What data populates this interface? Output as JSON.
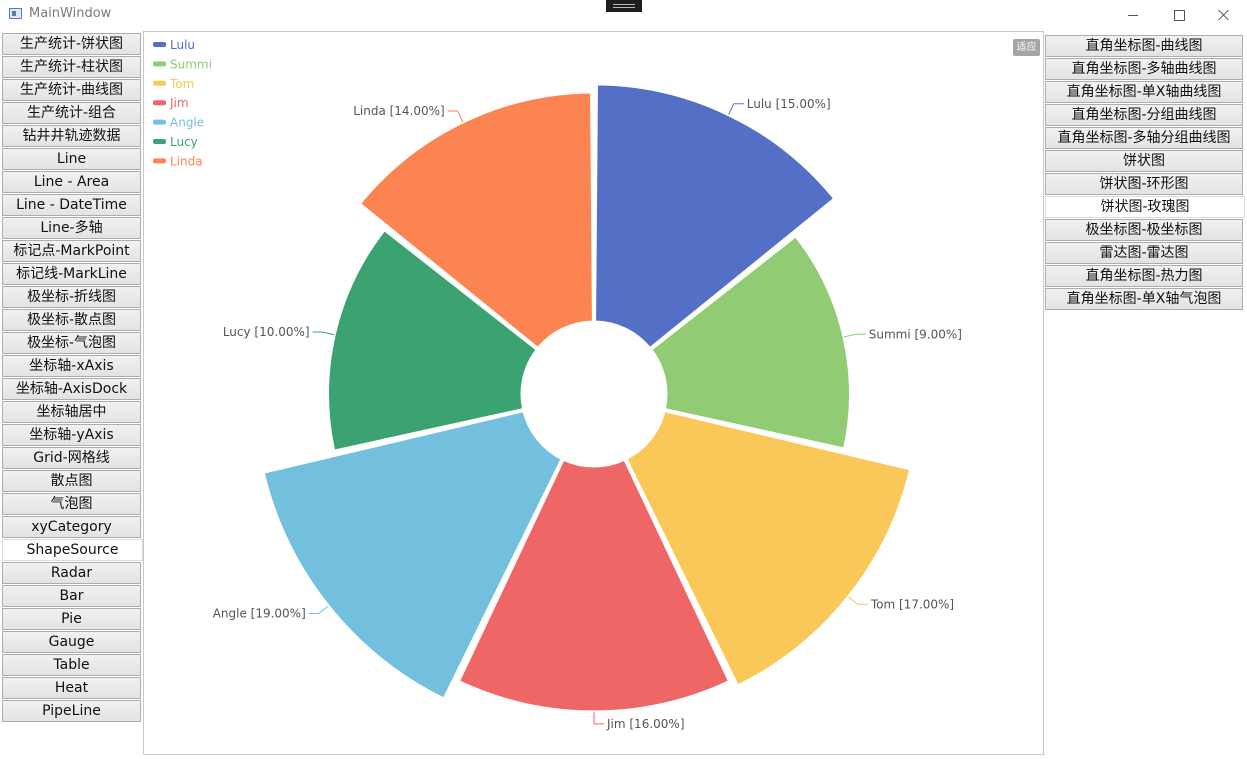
{
  "window": {
    "title": "MainWindow"
  },
  "left_nav": [
    "生产统计-饼状图",
    "生产统计-柱状图",
    "生产统计-曲线图",
    "生产统计-组合",
    "钻井井轨迹数据",
    "Line",
    "Line - Area",
    "Line - DateTime",
    "Line-多轴",
    "标记点-MarkPoint",
    "标记线-MarkLine",
    "极坐标-折线图",
    "极坐标-散点图",
    "极坐标-气泡图",
    "坐标轴-xAxis",
    "坐标轴-AxisDock",
    "坐标轴居中",
    "坐标轴-yAxis",
    "Grid-网格线",
    "散点图",
    "气泡图",
    "xyCategory",
    "ShapeSource",
    "Radar",
    "Bar",
    "Pie",
    "Gauge",
    "Table",
    "Heat",
    "PipeLine"
  ],
  "left_active": "ShapeSource",
  "right_nav": [
    "直角坐标图-曲线图",
    "直角坐标图-多轴曲线图",
    "直角坐标图-单X轴曲线图",
    "直角坐标图-分组曲线图",
    "直角坐标图-多轴分组曲线图",
    "饼状图",
    "饼状图-环形图",
    "饼状图-玫瑰图",
    "极坐标图-极坐标图",
    "雷达图-雷达图",
    "直角坐标图-热力图",
    "直角坐标图-单X轴气泡图"
  ],
  "right_active": "饼状图-玫瑰图",
  "fit_button": "适应",
  "chart_data": {
    "type": "pie",
    "variant": "rose (nightingale) with inner radius",
    "legend_position": "top-left",
    "categories": [
      "Lulu",
      "Summi",
      "Tom",
      "Jim",
      "Angle",
      "Lucy",
      "Linda"
    ],
    "values": [
      15,
      9,
      17,
      16,
      19,
      10,
      14
    ],
    "labels": [
      "Lulu [15.00%]",
      "Summi [9.00%]",
      "Tom [17.00%]",
      "Jim [16.00%]",
      "Angle [19.00%]",
      "Lucy [10.00%]",
      "Linda [14.00%]"
    ],
    "colors": [
      "#5470c6",
      "#91cc75",
      "#fac858",
      "#ee6666",
      "#73c0de",
      "#3ba272",
      "#fc8452"
    ]
  }
}
